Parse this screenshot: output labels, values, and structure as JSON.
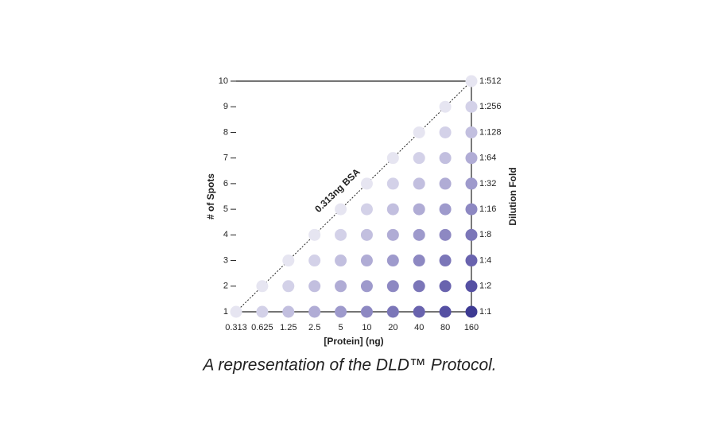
{
  "chart_data": {
    "type": "dot-column",
    "title": "A representation of the DLD™ Protocol.",
    "x_label": "[Protein] (ng)",
    "y_label": "# of Spots",
    "y2_label": "Dilution Fold",
    "annotation": "0.313ng BSA",
    "categories": [
      "0.313",
      "0.625",
      "1.25",
      "2.5",
      "5",
      "10",
      "20",
      "40",
      "80",
      "160"
    ],
    "values": [
      1,
      2,
      3,
      4,
      5,
      6,
      7,
      8,
      9,
      10
    ],
    "ylim": [
      1,
      10
    ],
    "yticks": [
      1,
      2,
      3,
      4,
      5,
      6,
      7,
      8,
      9,
      10
    ],
    "y2lim": [
      1,
      10
    ],
    "y2ticks": [
      {
        "value": 1,
        "label": "1:1"
      },
      {
        "value": 2,
        "label": "1:2"
      },
      {
        "value": 3,
        "label": "1:4"
      },
      {
        "value": 4,
        "label": "1:8"
      },
      {
        "value": 5,
        "label": "1:16"
      },
      {
        "value": 6,
        "label": "1:32"
      },
      {
        "value": 7,
        "label": "1:64"
      },
      {
        "value": 8,
        "label": "1:128"
      },
      {
        "value": 9,
        "label": "1:256"
      },
      {
        "value": 10,
        "label": "1:512"
      }
    ],
    "colors": [
      "#e6e5f1",
      "#d3d1e8",
      "#c2bfdf",
      "#b0acd5",
      "#9e9acc",
      "#8d88c2",
      "#7b76b8",
      "#6963ae",
      "#5550a3",
      "#3d3a93"
    ]
  }
}
